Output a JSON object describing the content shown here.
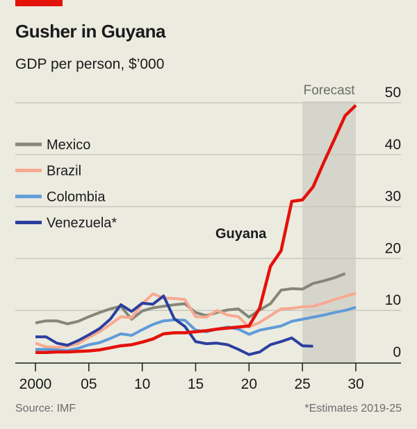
{
  "header": {
    "title": "Gusher in Guyana",
    "subtitle": "GDP per person, $’000"
  },
  "footer": {
    "source": "Source: IMF",
    "note": "*Estimates 2019-25"
  },
  "chart_data": {
    "type": "line",
    "title": "Gusher in Guyana",
    "ylabel": "GDP per person, $’000",
    "ylim": [
      0,
      50
    ],
    "xlim": [
      2000,
      2030
    ],
    "yticks": [
      0,
      10,
      20,
      30,
      40,
      50
    ],
    "xticks": [
      2000,
      2005,
      2010,
      2015,
      2020,
      2025,
      2030
    ],
    "xtick_labels": [
      "2000",
      "05",
      "10",
      "15",
      "20",
      "25",
      "30"
    ],
    "grid": true,
    "legend": "left",
    "forecast_band": {
      "label": "Forecast",
      "from": 2025,
      "to": 2030,
      "color": "#d6d5cc"
    },
    "series": [
      {
        "name": "Mexico",
        "color": "#858579",
        "start": 2000,
        "values": [
          7.6,
          8.0,
          8.0,
          7.4,
          7.9,
          8.8,
          9.6,
          10.3,
          10.8,
          8.3,
          9.9,
          10.5,
          10.8,
          11.1,
          11.3,
          9.6,
          9.0,
          9.6,
          10.1,
          10.3,
          8.7,
          10.1,
          11.3,
          13.9,
          14.2,
          14.1,
          15.2,
          15.7,
          16.3,
          17.1
        ]
      },
      {
        "name": "Brazil",
        "color": "#f7a990",
        "start": 2000,
        "values": [
          3.7,
          3.0,
          2.9,
          3.1,
          3.6,
          4.8,
          5.9,
          7.3,
          8.8,
          8.6,
          11.3,
          13.2,
          12.4,
          12.3,
          12.1,
          8.8,
          8.7,
          10.0,
          9.1,
          8.8,
          6.8,
          7.7,
          9.0,
          10.3,
          10.4,
          10.7,
          10.8,
          11.4,
          12.1,
          12.7,
          13.3
        ]
      },
      {
        "name": "Colombia",
        "color": "#5f9bd8",
        "start": 2000,
        "values": [
          2.5,
          2.5,
          2.4,
          2.3,
          2.7,
          3.4,
          3.8,
          4.6,
          5.5,
          5.2,
          6.3,
          7.3,
          8.0,
          8.2,
          8.1,
          6.2,
          5.9,
          6.4,
          6.8,
          6.4,
          5.4,
          6.2,
          6.6,
          7.0,
          7.9,
          8.3,
          8.7,
          9.1,
          9.6,
          10.0,
          10.6
        ]
      },
      {
        "name": "Venezuela*",
        "color": "#2a3f9e",
        "start": 2000,
        "values": [
          4.9,
          4.9,
          3.7,
          3.3,
          4.2,
          5.3,
          6.5,
          8.3,
          11.1,
          9.8,
          11.4,
          11.2,
          12.8,
          8.4,
          6.9,
          4.0,
          3.6,
          3.7,
          3.4,
          2.5,
          1.5,
          2.0,
          3.4,
          4.0,
          4.7,
          3.2,
          3.1
        ]
      },
      {
        "name": "Guyana",
        "color": "#e3120b",
        "start": 2000,
        "values": [
          1.9,
          1.9,
          2.0,
          2.0,
          2.1,
          2.2,
          2.4,
          2.8,
          3.2,
          3.4,
          3.9,
          4.5,
          5.5,
          5.7,
          5.7,
          5.9,
          6.1,
          6.4,
          6.6,
          6.8,
          7.0,
          10.5,
          18.5,
          21.5,
          31.0,
          31.3,
          33.8,
          38.5,
          43.0,
          47.5,
          49.5
        ]
      }
    ]
  }
}
